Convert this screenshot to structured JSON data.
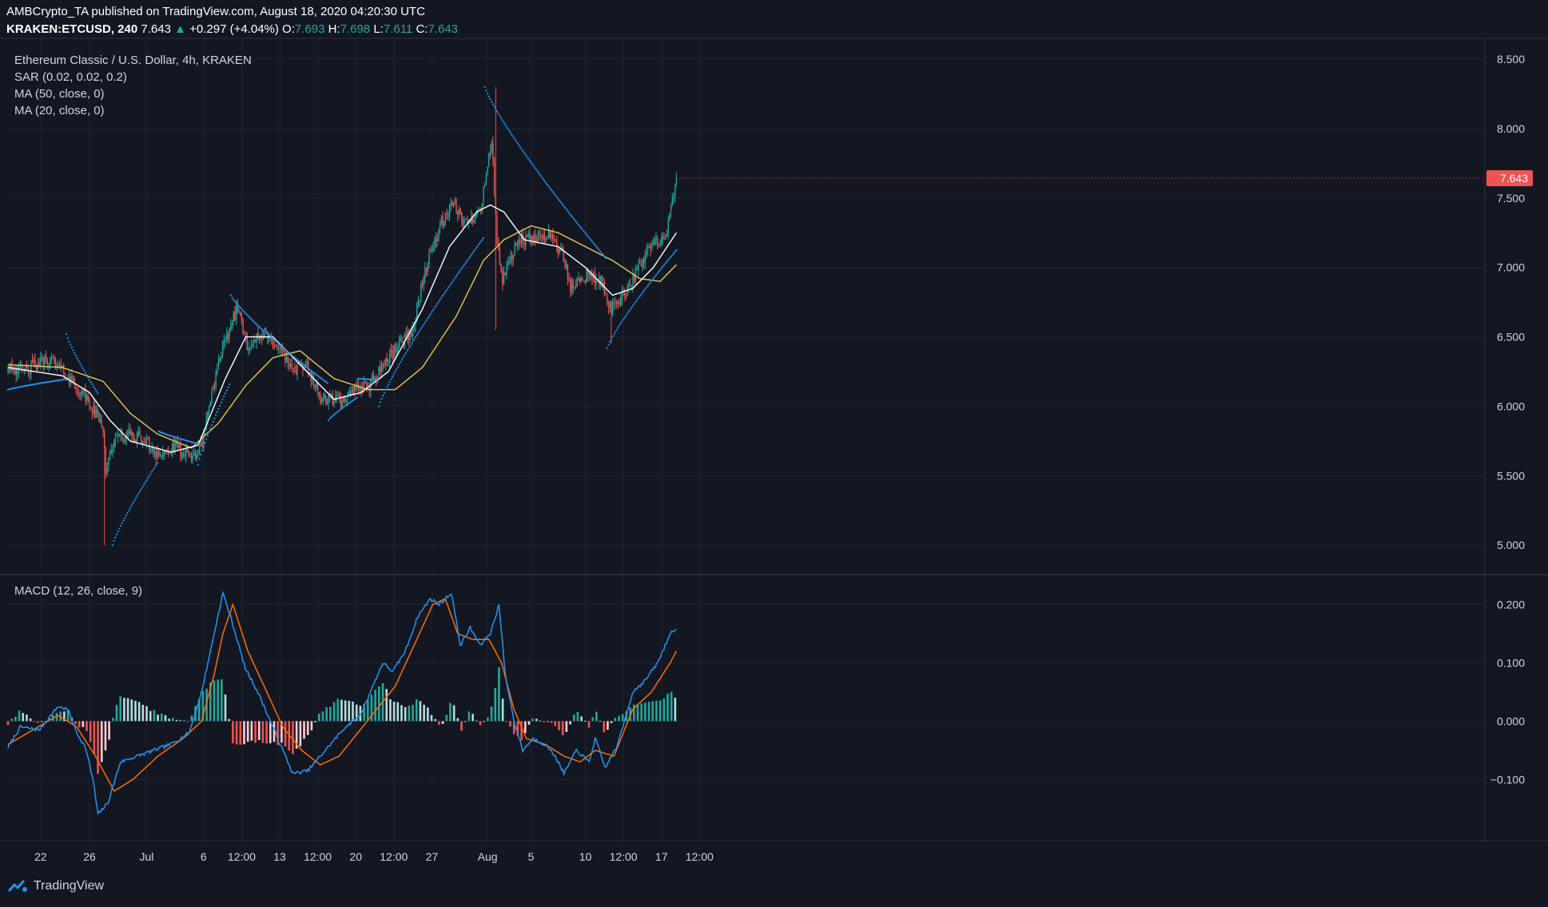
{
  "header": {
    "publisher": "AMBCrypto_TA published on TradingView.com, August 18, 2020 04:20:30 UTC",
    "symbol": "KRAKEN:ETCUSD, 240",
    "last": "7.643",
    "change": "+0.297 (+4.04%)",
    "o_label": "O:",
    "o_value": "7.693",
    "h_label": "H:",
    "h_value": "7.698",
    "l_label": "L:",
    "l_value": "7.611",
    "c_label": "C:",
    "c_value": "7.643"
  },
  "legend": {
    "title": "Ethereum Classic / U.S. Dollar, 4h, KRAKEN",
    "sar": "SAR (0.02, 0.02, 0.2)",
    "ma50": "MA (50, close, 0)",
    "ma20": "MA (20, close, 0)",
    "macd": "MACD (12, 26, close, 9)"
  },
  "footer": {
    "brand": "TradingView"
  },
  "colors": {
    "background": "#131722",
    "grid": "#1f2330",
    "up": "#26a69a",
    "down": "#ef5350",
    "sar": "#2196f3",
    "ma50": "#e6c84a",
    "ma20": "#ffffff",
    "macd_line": "#2196f3",
    "signal_line": "#ff6d00"
  },
  "chart_data": [
    {
      "type": "candlestick",
      "title": "Ethereum Classic / U.S. Dollar, 4h, KRAKEN",
      "ylim": [
        4.8,
        8.65
      ],
      "y_ticks": [
        "8.500",
        "8.000",
        "7.500",
        "7.000",
        "6.500",
        "6.000",
        "5.500",
        "5.000"
      ],
      "y_tick_values": [
        8.5,
        8.0,
        7.5,
        7.0,
        6.5,
        6.0,
        5.5,
        5.0
      ],
      "x_ticks": [
        "22",
        "26",
        "Jul",
        "6",
        "12:00",
        "13",
        "12:00",
        "20",
        "12:00",
        "27",
        "Aug",
        "5",
        "10",
        "12:00",
        "17",
        "12:00"
      ],
      "x_tick_index": [
        24,
        60,
        102,
        144,
        172,
        200,
        228,
        256,
        284,
        312,
        353,
        385,
        425,
        453,
        481,
        509
      ],
      "last_price_label": "7.643",
      "last_price": 7.643,
      "close_anchors": [
        [
          0,
          6.3
        ],
        [
          10,
          6.25
        ],
        [
          22,
          6.3
        ],
        [
          30,
          6.35
        ],
        [
          40,
          6.25
        ],
        [
          50,
          6.15
        ],
        [
          58,
          6.05
        ],
        [
          70,
          5.85
        ],
        [
          72,
          5.55
        ],
        [
          78,
          5.75
        ],
        [
          90,
          5.8
        ],
        [
          100,
          5.75
        ],
        [
          112,
          5.65
        ],
        [
          124,
          5.7
        ],
        [
          134,
          5.62
        ],
        [
          142,
          5.7
        ],
        [
          150,
          6.1
        ],
        [
          158,
          6.4
        ],
        [
          166,
          6.65
        ],
        [
          170,
          6.7
        ],
        [
          176,
          6.45
        ],
        [
          188,
          6.5
        ],
        [
          198,
          6.45
        ],
        [
          210,
          6.25
        ],
        [
          220,
          6.3
        ],
        [
          230,
          6.05
        ],
        [
          240,
          6.05
        ],
        [
          248,
          6.02
        ],
        [
          256,
          6.15
        ],
        [
          266,
          6.15
        ],
        [
          276,
          6.3
        ],
        [
          288,
          6.45
        ],
        [
          298,
          6.55
        ],
        [
          306,
          6.95
        ],
        [
          318,
          7.3
        ],
        [
          328,
          7.45
        ],
        [
          338,
          7.3
        ],
        [
          348,
          7.45
        ],
        [
          356,
          7.9
        ],
        [
          360,
          7.2
        ],
        [
          364,
          6.9
        ],
        [
          376,
          7.2
        ],
        [
          388,
          7.2
        ],
        [
          398,
          7.25
        ],
        [
          408,
          7.1
        ],
        [
          414,
          6.85
        ],
        [
          426,
          6.95
        ],
        [
          436,
          6.9
        ],
        [
          444,
          6.7
        ],
        [
          452,
          6.8
        ],
        [
          462,
          6.95
        ],
        [
          472,
          7.15
        ],
        [
          484,
          7.2
        ],
        [
          492,
          7.643
        ]
      ],
      "sar_segments": [
        {
          "from": 0,
          "to": 42,
          "start": 6.12,
          "dir": "up"
        },
        {
          "from": 43,
          "to": 66,
          "start": 6.52,
          "dir": "down"
        },
        {
          "from": 77,
          "to": 110,
          "start": 5.0,
          "dir": "up"
        },
        {
          "from": 111,
          "to": 139,
          "start": 5.82,
          "dir": "down"
        },
        {
          "from": 140,
          "to": 163,
          "start": 5.58,
          "dir": "up"
        },
        {
          "from": 164,
          "to": 188,
          "start": 6.8,
          "dir": "down"
        },
        {
          "from": 189,
          "to": 235,
          "start": 6.56,
          "dir": "down"
        },
        {
          "from": 236,
          "to": 257,
          "start": 5.9,
          "dir": "up"
        },
        {
          "from": 258,
          "to": 272,
          "start": 6.2,
          "dir": "up"
        },
        {
          "from": 273,
          "to": 350,
          "start": 6.0,
          "dir": "up"
        },
        {
          "from": 351,
          "to": 440,
          "start": 8.3,
          "dir": "down"
        },
        {
          "from": 441,
          "to": 492,
          "start": 6.42,
          "dir": "up"
        }
      ],
      "ma50_anchors": [
        [
          0,
          6.3
        ],
        [
          40,
          6.28
        ],
        [
          70,
          6.18
        ],
        [
          90,
          5.95
        ],
        [
          110,
          5.8
        ],
        [
          135,
          5.7
        ],
        [
          155,
          5.88
        ],
        [
          175,
          6.15
        ],
        [
          195,
          6.35
        ],
        [
          215,
          6.4
        ],
        [
          240,
          6.2
        ],
        [
          265,
          6.12
        ],
        [
          285,
          6.12
        ],
        [
          305,
          6.28
        ],
        [
          330,
          6.65
        ],
        [
          350,
          7.05
        ],
        [
          365,
          7.2
        ],
        [
          385,
          7.3
        ],
        [
          405,
          7.25
        ],
        [
          425,
          7.15
        ],
        [
          445,
          7.05
        ],
        [
          465,
          6.92
        ],
        [
          480,
          6.9
        ],
        [
          492,
          7.02
        ]
      ],
      "ma20_anchors": [
        [
          0,
          6.28
        ],
        [
          40,
          6.22
        ],
        [
          60,
          6.1
        ],
        [
          75,
          5.9
        ],
        [
          90,
          5.75
        ],
        [
          120,
          5.67
        ],
        [
          140,
          5.72
        ],
        [
          160,
          6.2
        ],
        [
          175,
          6.5
        ],
        [
          195,
          6.5
        ],
        [
          215,
          6.3
        ],
        [
          240,
          6.05
        ],
        [
          260,
          6.1
        ],
        [
          280,
          6.25
        ],
        [
          305,
          6.7
        ],
        [
          325,
          7.15
        ],
        [
          345,
          7.4
        ],
        [
          355,
          7.45
        ],
        [
          365,
          7.4
        ],
        [
          380,
          7.2
        ],
        [
          405,
          7.15
        ],
        [
          425,
          7.0
        ],
        [
          445,
          6.8
        ],
        [
          460,
          6.85
        ],
        [
          475,
          7.0
        ],
        [
          492,
          7.25
        ]
      ]
    },
    {
      "type": "macd",
      "title": "MACD (12, 26, close, 9)",
      "ylim": [
        -0.205,
        0.25
      ],
      "y_ticks": [
        "0.200",
        "0.100",
        "0.000",
        "−0.100"
      ],
      "y_tick_values": [
        0.2,
        0.1,
        0.0,
        -0.1
      ],
      "macd_anchors": [
        [
          0,
          -0.045
        ],
        [
          10,
          -0.01
        ],
        [
          25,
          -0.015
        ],
        [
          40,
          0.025
        ],
        [
          48,
          0.02
        ],
        [
          55,
          -0.02
        ],
        [
          62,
          -0.045
        ],
        [
          68,
          -0.1
        ],
        [
          72,
          -0.16
        ],
        [
          80,
          -0.14
        ],
        [
          90,
          -0.07
        ],
        [
          110,
          -0.055
        ],
        [
          130,
          -0.04
        ],
        [
          145,
          -0.02
        ],
        [
          155,
          0.05
        ],
        [
          165,
          0.15
        ],
        [
          172,
          0.22
        ],
        [
          178,
          0.18
        ],
        [
          190,
          0.09
        ],
        [
          200,
          0.05
        ],
        [
          210,
          0.0
        ],
        [
          220,
          -0.05
        ],
        [
          228,
          -0.09
        ],
        [
          240,
          -0.085
        ],
        [
          250,
          -0.06
        ],
        [
          258,
          -0.04
        ],
        [
          270,
          -0.01
        ],
        [
          282,
          0.01
        ],
        [
          292,
          0.06
        ],
        [
          300,
          0.1
        ],
        [
          308,
          0.085
        ],
        [
          318,
          0.12
        ],
        [
          328,
          0.18
        ],
        [
          338,
          0.21
        ],
        [
          345,
          0.2
        ],
        [
          355,
          0.22
        ],
        [
          362,
          0.13
        ],
        [
          370,
          0.16
        ],
        [
          378,
          0.13
        ],
        [
          386,
          0.15
        ],
        [
          393,
          0.2
        ],
        [
          398,
          0.08
        ],
        [
          405,
          0.0
        ],
        [
          412,
          -0.05
        ],
        [
          420,
          -0.03
        ],
        [
          430,
          -0.04
        ],
        [
          438,
          -0.06
        ],
        [
          445,
          -0.09
        ],
        [
          455,
          -0.05
        ],
        [
          465,
          -0.07
        ],
        [
          470,
          -0.03
        ],
        [
          478,
          -0.08
        ],
        [
          488,
          -0.04
        ],
        [
          500,
          0.05
        ],
        [
          510,
          0.07
        ],
        [
          520,
          0.1
        ],
        [
          530,
          0.15
        ],
        [
          535,
          0.16
        ]
      ],
      "signal_anchors": [
        [
          0,
          -0.04
        ],
        [
          20,
          -0.015
        ],
        [
          40,
          0.01
        ],
        [
          55,
          -0.01
        ],
        [
          70,
          -0.06
        ],
        [
          85,
          -0.12
        ],
        [
          100,
          -0.1
        ],
        [
          120,
          -0.06
        ],
        [
          140,
          -0.03
        ],
        [
          155,
          0.0
        ],
        [
          165,
          0.08
        ],
        [
          172,
          0.15
        ],
        [
          180,
          0.2
        ],
        [
          192,
          0.12
        ],
        [
          205,
          0.06
        ],
        [
          220,
          -0.01
        ],
        [
          235,
          -0.05
        ],
        [
          250,
          -0.075
        ],
        [
          265,
          -0.06
        ],
        [
          280,
          -0.02
        ],
        [
          295,
          0.02
        ],
        [
          310,
          0.06
        ],
        [
          325,
          0.13
        ],
        [
          340,
          0.2
        ],
        [
          350,
          0.21
        ],
        [
          360,
          0.15
        ],
        [
          372,
          0.14
        ],
        [
          385,
          0.14
        ],
        [
          395,
          0.1
        ],
        [
          405,
          0.02
        ],
        [
          415,
          -0.03
        ],
        [
          430,
          -0.04
        ],
        [
          445,
          -0.06
        ],
        [
          458,
          -0.07
        ],
        [
          470,
          -0.05
        ],
        [
          485,
          -0.06
        ],
        [
          500,
          0.02
        ],
        [
          515,
          0.05
        ],
        [
          530,
          0.1
        ],
        [
          535,
          0.12
        ]
      ]
    }
  ]
}
